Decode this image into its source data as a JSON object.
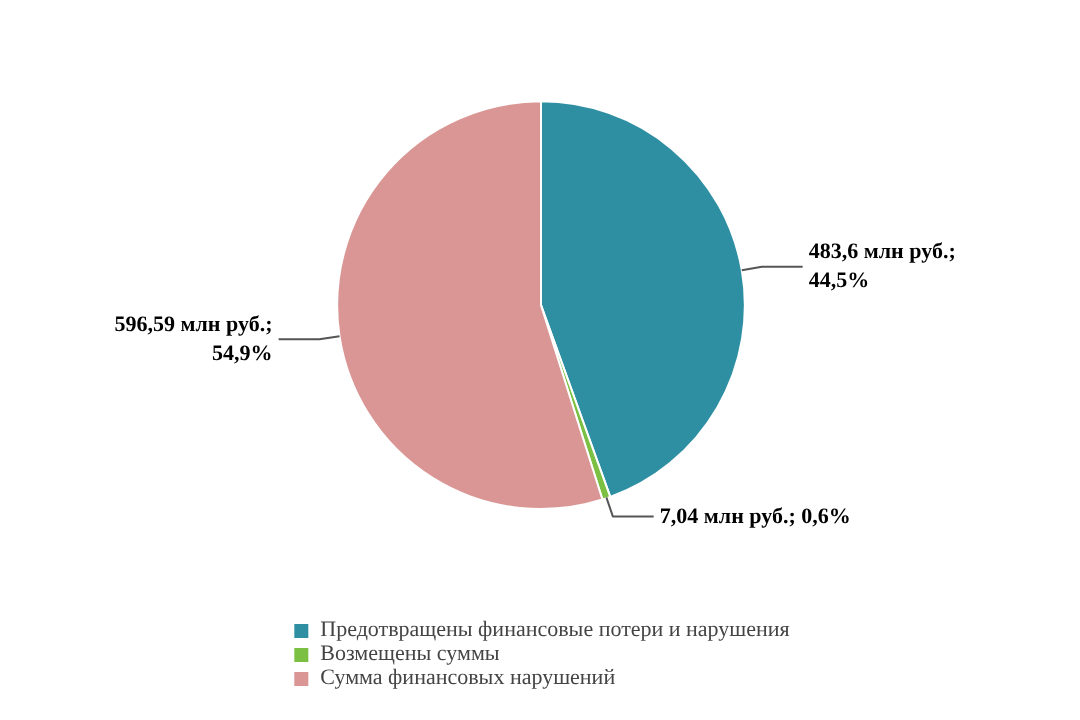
{
  "chart_data": {
    "type": "pie",
    "categories": [
      "Предотвращены финансовые потери и нарушения",
      "Возмещены суммы",
      "Сумма финансовых нарушений"
    ],
    "values": [
      483.6,
      7.04,
      596.59
    ],
    "colors": [
      "#2e8fa3",
      "#7bc043",
      "#d99694"
    ],
    "value_labels": [
      "483,6 млн руб.;\n44,5%",
      "7,04 млн руб.;  0,6%",
      "596,59 млн руб.;\n54,9%"
    ],
    "legend": "bottom"
  }
}
